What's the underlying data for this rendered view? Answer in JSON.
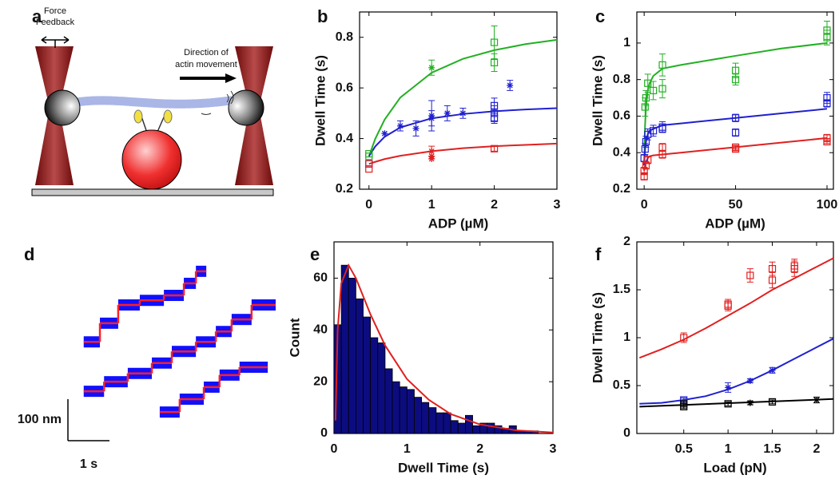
{
  "diagram": {
    "panel": "a",
    "force_label": [
      "Force",
      "Feedback"
    ],
    "direction_label": [
      "Direction of",
      "actin movement"
    ]
  },
  "chart_data": [
    {
      "type": "scatter",
      "panel": "b",
      "x_label": "ADP (µM)",
      "y_label": "Dwell Time (s)",
      "xlim": [
        -0.15,
        3
      ],
      "ylim": [
        0.2,
        0.9
      ],
      "xticks": [
        0,
        1,
        2,
        3
      ],
      "yticks": [
        0.2,
        0.4,
        0.6,
        0.8
      ],
      "series": [
        {
          "color": "#22b022",
          "marker": "square",
          "x": [
            0,
            0,
            2,
            2
          ],
          "values": [
            0.33,
            0.34,
            0.78,
            0.7
          ],
          "errors": [
            null,
            null,
            0.065,
            0.035
          ]
        },
        {
          "color": "#22b022",
          "marker": "star",
          "x": [
            1
          ],
          "values": [
            0.68
          ],
          "errors": [
            0.03
          ]
        },
        {
          "color": "#2020d0",
          "marker": "square",
          "x": [
            0,
            2,
            2,
            2
          ],
          "values": [
            0.3,
            0.53,
            0.5,
            0.48
          ],
          "errors": [
            null,
            0.03,
            0.03,
            0.02
          ]
        },
        {
          "color": "#2020d0",
          "marker": "star",
          "x": [
            0.25,
            0.5,
            0.75,
            1,
            1,
            1.25,
            1.5,
            2.25
          ],
          "values": [
            0.42,
            0.45,
            0.44,
            0.49,
            0.48,
            0.5,
            0.5,
            0.61
          ],
          "errors": [
            null,
            0.02,
            0.03,
            0.06,
            0.03,
            0.03,
            0.02,
            0.02
          ]
        },
        {
          "color": "#e02020",
          "marker": "square",
          "x": [
            0,
            0,
            2
          ],
          "values": [
            0.28,
            0.3,
            0.36
          ],
          "errors": [
            null,
            null,
            0.01
          ]
        },
        {
          "color": "#e02020",
          "marker": "star",
          "x": [
            1,
            1,
            1
          ],
          "values": [
            0.35,
            0.33,
            0.32
          ],
          "errors": [
            0.02,
            null,
            null
          ]
        }
      ],
      "fits": [
        {
          "color": "#22b022",
          "x": [
            0,
            0.1,
            0.25,
            0.5,
            1,
            1.5,
            2,
            2.5,
            3
          ],
          "values": [
            0.33,
            0.399,
            0.475,
            0.562,
            0.66,
            0.715,
            0.749,
            0.773,
            0.79
          ]
        },
        {
          "color": "#2020d0",
          "x": [
            0,
            0.1,
            0.25,
            0.5,
            1,
            1.5,
            2,
            2.5,
            3
          ],
          "values": [
            0.33,
            0.369,
            0.407,
            0.444,
            0.48,
            0.497,
            0.508,
            0.515,
            0.52
          ]
        },
        {
          "color": "#e02020",
          "x": [
            0,
            0.1,
            0.25,
            0.5,
            1,
            1.5,
            2,
            2.5,
            3
          ],
          "values": [
            0.3,
            0.308,
            0.319,
            0.332,
            0.35,
            0.362,
            0.37,
            0.375,
            0.38
          ]
        }
      ]
    },
    {
      "type": "scatter",
      "panel": "c",
      "x_label": "ADP (µM)",
      "y_label": "Dwell Time (s)",
      "xlim": [
        -4,
        103.5
      ],
      "ylim": [
        0.2,
        1.17
      ],
      "xticks": [
        0,
        50,
        100
      ],
      "yticks": [
        0.2,
        0.4,
        0.6,
        0.8,
        1
      ],
      "series": [
        {
          "color": "#22b022",
          "marker": "square",
          "x": [
            0.5,
            1,
            2,
            5,
            10,
            10,
            50,
            50,
            100,
            100
          ],
          "values": [
            0.65,
            0.7,
            0.78,
            0.74,
            0.88,
            0.75,
            0.85,
            0.8,
            1.07,
            1.03
          ],
          "errors": [
            0.05,
            0.04,
            0.05,
            0.05,
            0.06,
            0.05,
            0.04,
            0.03,
            0.05,
            0.04
          ]
        },
        {
          "color": "#2020d0",
          "marker": "square",
          "x": [
            0,
            0.5,
            1,
            2,
            5,
            10,
            10,
            50,
            50,
            100,
            100
          ],
          "values": [
            0.37,
            0.42,
            0.46,
            0.5,
            0.52,
            0.54,
            0.53,
            0.59,
            0.51,
            0.7,
            0.67
          ],
          "errors": [
            0.02,
            0.03,
            0.03,
            0.03,
            0.03,
            0.03,
            0.02,
            0.02,
            0.02,
            0.03,
            0.02
          ]
        },
        {
          "color": "#e02020",
          "marker": "square",
          "x": [
            0,
            0,
            1,
            2,
            10,
            10,
            50,
            50,
            100,
            100
          ],
          "values": [
            0.27,
            0.3,
            0.33,
            0.36,
            0.39,
            0.43,
            0.43,
            0.42,
            0.48,
            0.46
          ],
          "errors": [
            0.02,
            0.02,
            0.02,
            0.02,
            0.02,
            0.02,
            0.01,
            0.01,
            0.02,
            0.01
          ]
        }
      ],
      "fits": [
        {
          "color": "#22b022",
          "x": [
            0,
            0.5,
            1,
            2,
            3,
            5,
            10,
            20,
            50,
            75,
            100
          ],
          "values": [
            0.33,
            0.55,
            0.65,
            0.74,
            0.78,
            0.82,
            0.86,
            0.88,
            0.93,
            0.97,
            1.0
          ]
        },
        {
          "color": "#2020d0",
          "x": [
            0,
            0.5,
            1,
            2,
            3,
            5,
            10,
            20,
            50,
            75,
            100
          ],
          "values": [
            0.33,
            0.42,
            0.46,
            0.5,
            0.52,
            0.53,
            0.55,
            0.56,
            0.59,
            0.615,
            0.64
          ]
        },
        {
          "color": "#e02020",
          "x": [
            0,
            0.5,
            1,
            2,
            3,
            5,
            10,
            20,
            50,
            75,
            100
          ],
          "values": [
            0.3,
            0.33,
            0.35,
            0.37,
            0.38,
            0.385,
            0.39,
            0.4,
            0.43,
            0.455,
            0.48
          ]
        }
      ]
    },
    {
      "type": "trace",
      "panel": "d",
      "scale_bar": {
        "x": {
          "value": 1,
          "label": "1 s"
        },
        "y": {
          "value": 100,
          "label": "100 nm"
        }
      },
      "series": [
        {
          "color": "#ff2020",
          "raw_color": "#1010ff",
          "edges": [
            0.38,
            0.77,
            1.21,
            1.73,
            2.31,
            2.79,
            3.08,
            3.33
          ],
          "values": [
            238,
            283,
            327,
            338,
            350,
            379,
            408
          ]
        },
        {
          "color": "#ff2020",
          "raw_color": "#1010ff",
          "edges": [
            0.38,
            0.87,
            1.44,
            2.02,
            2.5,
            3.08,
            3.56,
            3.94,
            4.42,
            5.0
          ],
          "values": [
            119,
            142,
            162,
            187,
            215,
            238,
            263,
            292,
            327
          ]
        },
        {
          "color": "#ff2020",
          "raw_color": "#1010ff",
          "edges": [
            2.21,
            2.69,
            3.27,
            3.65,
            4.13,
            4.81
          ],
          "values": [
            69,
            100,
            129,
            158,
            177
          ]
        }
      ]
    },
    {
      "type": "histogram",
      "panel": "e",
      "x_label": "Dwell Time (s)",
      "y_label": "Count",
      "xlim": [
        0,
        3
      ],
      "ylim": [
        0,
        74
      ],
      "xticks": [
        0,
        1,
        2,
        3
      ],
      "yticks": [
        0,
        20,
        40,
        60
      ],
      "color": "#0c0c80",
      "bins": [
        0,
        0.1,
        0.2,
        0.3,
        0.4,
        0.5,
        0.6,
        0.7,
        0.8,
        0.9,
        1.0,
        1.1,
        1.2,
        1.3,
        1.4,
        1.5,
        1.6,
        1.7,
        1.8,
        1.9,
        2.0,
        2.1,
        2.2,
        2.3,
        2.4,
        2.5,
        2.6,
        2.7,
        2.8
      ],
      "values": [
        42,
        65,
        60,
        52,
        45,
        37,
        35,
        25,
        20,
        18,
        17,
        14,
        12,
        10,
        8,
        8,
        5,
        4,
        7,
        3,
        4,
        4,
        3,
        2,
        3,
        1,
        1,
        1
      ],
      "fits": [
        {
          "color": "#e02020",
          "x": [
            0.02,
            0.05,
            0.1,
            0.2,
            0.3,
            0.5,
            0.7,
            1,
            1.3,
            1.6,
            2,
            2.5,
            3
          ],
          "values": [
            5,
            40,
            58,
            65,
            60,
            46,
            34,
            21,
            13,
            7.5,
            3.5,
            1.2,
            0.4
          ]
        }
      ]
    },
    {
      "type": "scatter",
      "panel": "f",
      "x_label": "Load (pN)",
      "y_label": "Dwell Time (s)",
      "xlim": [
        -0.03,
        2.19
      ],
      "ylim": [
        0,
        2
      ],
      "xticks": [
        0.5,
        1,
        1.5,
        2
      ],
      "yticks": [
        0,
        0.5,
        1,
        1.5,
        2
      ],
      "series": [
        {
          "color": "#e02020",
          "marker": "square",
          "x": [
            0.5,
            1,
            1,
            1.25,
            1.5,
            1.5,
            1.75,
            1.75
          ],
          "values": [
            1.0,
            1.35,
            1.33,
            1.65,
            1.72,
            1.6,
            1.72,
            1.75
          ],
          "errors": [
            0.05,
            0.05,
            0.05,
            0.07,
            0.07,
            0.08,
            0.08,
            0.07
          ]
        },
        {
          "color": "#2020d0",
          "marker": "square",
          "x": [
            0.5
          ],
          "values": [
            0.35
          ],
          "errors": [
            0.02
          ]
        },
        {
          "color": "#2020d0",
          "marker": "star",
          "x": [
            1,
            1.25,
            1.5
          ],
          "values": [
            0.48,
            0.55,
            0.66
          ],
          "errors": [
            0.05,
            0.02,
            0.03
          ]
        },
        {
          "color": "#000000",
          "marker": "square",
          "x": [
            0.5,
            0.5,
            1,
            1.5
          ],
          "values": [
            0.28,
            0.31,
            0.31,
            0.33
          ],
          "errors": [
            0.02,
            0.02,
            0.02,
            0.02
          ]
        },
        {
          "color": "#000000",
          "marker": "star",
          "x": [
            1.25,
            2
          ],
          "values": [
            0.32,
            0.35
          ],
          "errors": [
            0.02,
            0.03
          ]
        }
      ],
      "fits": [
        {
          "color": "#e02020",
          "x": [
            0,
            0.25,
            0.5,
            0.75,
            1,
            1.25,
            1.5,
            1.75,
            2,
            2.19
          ],
          "values": [
            0.79,
            0.88,
            0.98,
            1.1,
            1.23,
            1.36,
            1.5,
            1.62,
            1.74,
            1.83
          ]
        },
        {
          "color": "#2020d0",
          "x": [
            0,
            0.25,
            0.5,
            0.75,
            1,
            1.25,
            1.5,
            1.75,
            2,
            2.19
          ],
          "values": [
            0.31,
            0.32,
            0.35,
            0.39,
            0.46,
            0.55,
            0.66,
            0.78,
            0.9,
            0.99
          ]
        },
        {
          "color": "#000000",
          "x": [
            0,
            2.19
          ],
          "values": [
            0.28,
            0.36
          ]
        }
      ]
    }
  ]
}
